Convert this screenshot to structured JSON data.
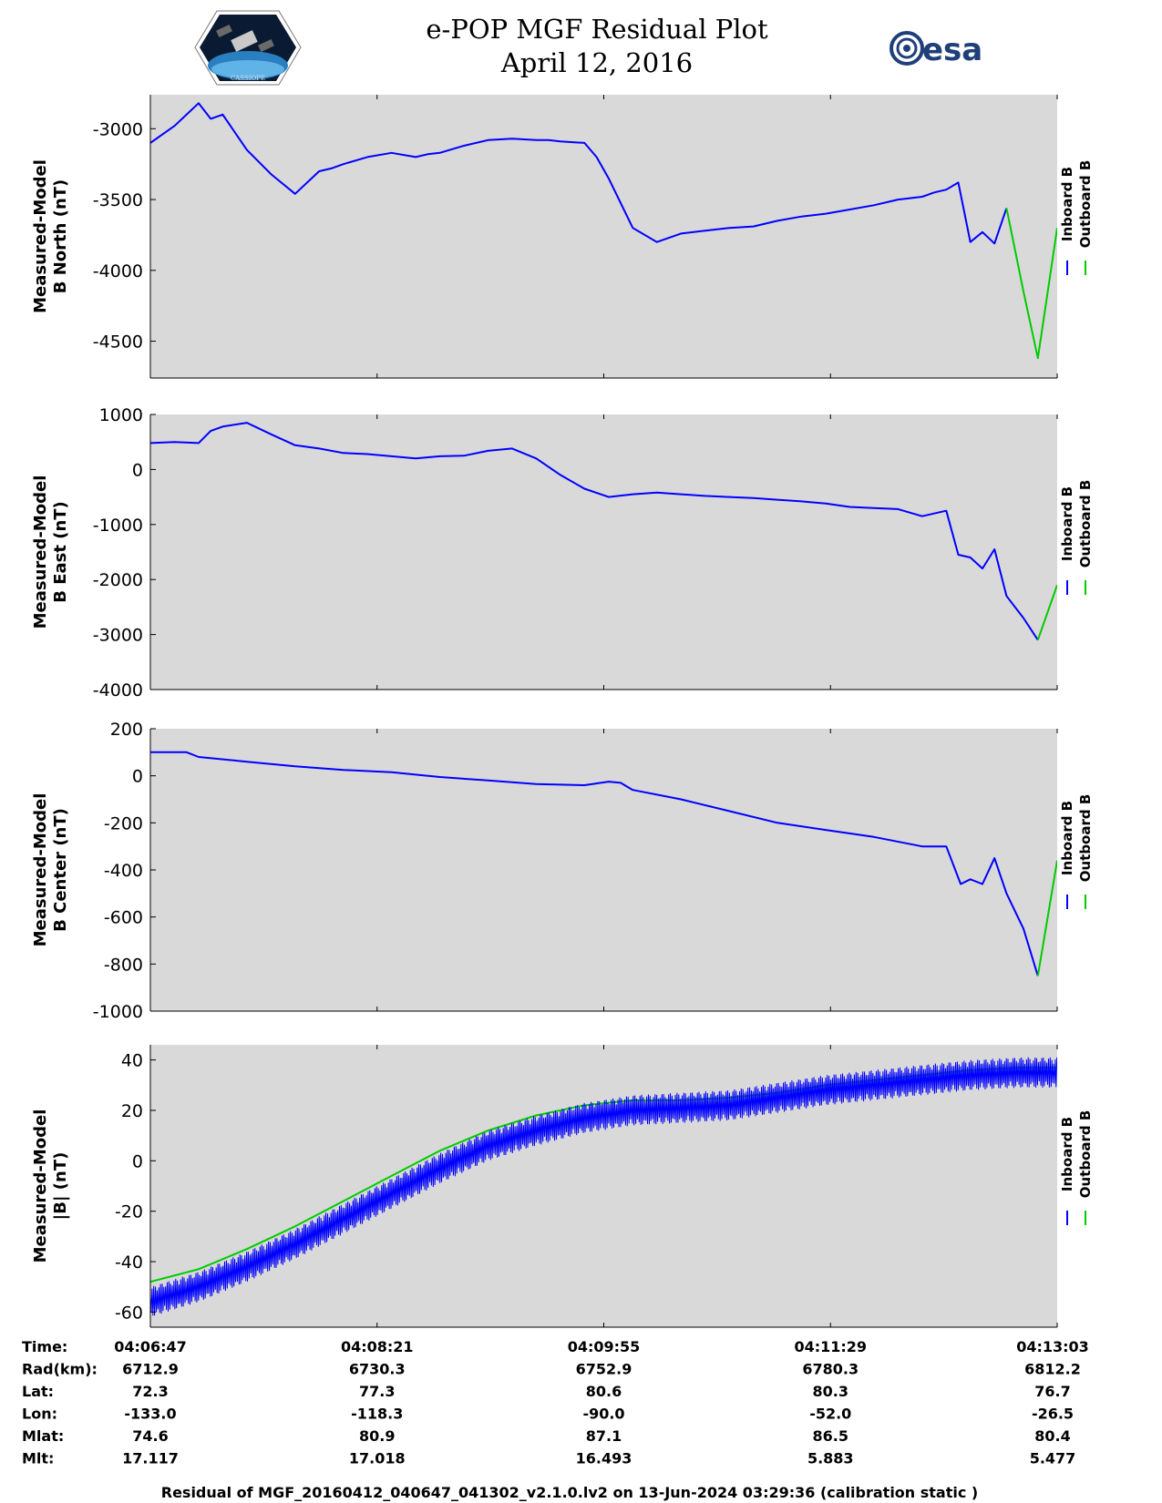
{
  "header": {
    "title": "e-POP MGF Residual Plot",
    "date": "April 12, 2016",
    "left_logo_text": "CASSIOPE",
    "right_logo_text": "esa"
  },
  "colors": {
    "inboard": "#0000ff",
    "outboard": "#00cc00",
    "plot_bg": "#d9d9d9",
    "axis": "#000000"
  },
  "legend": {
    "inboard_label": "Inboard B",
    "outboard_label": "Outboard B"
  },
  "chart_data": [
    {
      "type": "line",
      "ylabel_line1": "Measured-Model",
      "ylabel_line2": "B North (nT)",
      "ylim": [
        -4760,
        -2760
      ],
      "yticks": [
        -3000,
        -3500,
        -4000,
        -4500
      ],
      "ytick_labels": [
        "-3000",
        "-3500",
        "-4000",
        "-4500"
      ],
      "xlim": [
        0,
        376
      ],
      "series": [
        {
          "name": "Inboard B",
          "x": [
            0,
            10,
            20,
            25,
            30,
            40,
            50,
            60,
            70,
            75,
            80,
            90,
            100,
            110,
            115,
            120,
            130,
            140,
            150,
            160,
            165,
            170,
            180,
            185,
            190,
            200,
            210,
            220,
            230,
            240,
            250,
            260,
            270,
            280,
            290,
            300,
            310,
            320,
            325,
            330,
            335,
            340,
            345,
            350,
            355
          ],
          "y": [
            -3100,
            -2980,
            -2820,
            -2930,
            -2900,
            -3150,
            -3320,
            -3460,
            -3300,
            -3280,
            -3250,
            -3200,
            -3170,
            -3200,
            -3180,
            -3170,
            -3120,
            -3080,
            -3070,
            -3080,
            -3080,
            -3090,
            -3100,
            -3200,
            -3350,
            -3700,
            -3800,
            -3740,
            -3720,
            -3700,
            -3690,
            -3650,
            -3620,
            -3600,
            -3570,
            -3540,
            -3500,
            -3480,
            -3450,
            -3430,
            -3380,
            -3800,
            -3730,
            -3810,
            -3560
          ]
        },
        {
          "name": "Outboard B",
          "x": [
            355,
            362,
            368,
            376
          ],
          "y": [
            -3560,
            -4150,
            -4620,
            -3700
          ]
        }
      ]
    },
    {
      "type": "line",
      "ylabel_line1": "Measured-Model",
      "ylabel_line2": "B East (nT)",
      "ylim": [
        -4000,
        1000
      ],
      "yticks": [
        1000,
        0,
        -1000,
        -2000,
        -3000,
        -4000
      ],
      "ytick_labels": [
        "1000",
        "0",
        "-1000",
        "-2000",
        "-3000",
        "-4000"
      ],
      "xlim": [
        0,
        376
      ],
      "series": [
        {
          "name": "Inboard B",
          "x": [
            0,
            10,
            20,
            25,
            30,
            40,
            50,
            60,
            70,
            80,
            90,
            100,
            110,
            120,
            130,
            140,
            150,
            160,
            170,
            180,
            190,
            200,
            210,
            220,
            230,
            240,
            250,
            260,
            270,
            280,
            290,
            300,
            310,
            320,
            325,
            330,
            335,
            340,
            345,
            350,
            355,
            362,
            368
          ],
          "y": [
            480,
            500,
            480,
            700,
            780,
            850,
            640,
            440,
            380,
            300,
            280,
            240,
            200,
            240,
            250,
            340,
            380,
            200,
            -100,
            -350,
            -500,
            -450,
            -420,
            -450,
            -480,
            -500,
            -520,
            -550,
            -580,
            -620,
            -680,
            -700,
            -720,
            -850,
            -800,
            -750,
            -1550,
            -1600,
            -1800,
            -1450,
            -2300,
            -2700,
            -3100
          ]
        },
        {
          "name": "Outboard B",
          "x": [
            368,
            376
          ],
          "y": [
            -3100,
            -2100
          ]
        }
      ]
    },
    {
      "type": "line",
      "ylabel_line1": "Measured-Model",
      "ylabel_line2": "B Center (nT)",
      "ylim": [
        -1000,
        200
      ],
      "yticks": [
        200,
        0,
        -200,
        -400,
        -600,
        -800,
        -1000
      ],
      "ytick_labels": [
        "200",
        "0",
        "-200",
        "-400",
        "-600",
        "-800",
        "-1000"
      ],
      "xlim": [
        0,
        376
      ],
      "series": [
        {
          "name": "Inboard B",
          "x": [
            0,
            15,
            20,
            40,
            60,
            80,
            100,
            120,
            140,
            160,
            180,
            190,
            195,
            200,
            220,
            240,
            260,
            280,
            300,
            320,
            330,
            336,
            340,
            345,
            350,
            355,
            362,
            368
          ],
          "y": [
            100,
            100,
            80,
            60,
            40,
            25,
            15,
            -5,
            -20,
            -35,
            -40,
            -25,
            -30,
            -60,
            -100,
            -150,
            -200,
            -230,
            -260,
            -300,
            -300,
            -460,
            -440,
            -460,
            -350,
            -500,
            -650,
            -850
          ]
        },
        {
          "name": "Outboard B",
          "x": [
            368,
            376
          ],
          "y": [
            -850,
            -360
          ]
        }
      ]
    },
    {
      "type": "line",
      "ylabel_line1": "Measured-Model",
      "ylabel_line2": "|B| (nT)",
      "ylim": [
        -66,
        46
      ],
      "yticks": [
        40,
        20,
        0,
        -20,
        -40,
        -60
      ],
      "ytick_labels": [
        "40",
        "20",
        "0",
        "-20",
        "-40",
        "-60"
      ],
      "xlim": [
        0,
        376
      ],
      "series": [
        {
          "name": "Outboard B",
          "x": [
            0,
            20,
            40,
            60,
            80,
            100,
            120,
            140,
            160,
            180,
            200,
            220,
            240,
            260,
            280,
            300,
            320,
            340,
            360,
            376
          ],
          "y": [
            -48,
            -43,
            -35,
            -26,
            -16,
            -6,
            4,
            12,
            18,
            22,
            24,
            24,
            25,
            27,
            30,
            32,
            34,
            36,
            37,
            37
          ]
        },
        {
          "name": "Inboard B",
          "x": [
            0,
            20,
            40,
            60,
            80,
            100,
            120,
            140,
            160,
            180,
            200,
            220,
            240,
            260,
            280,
            300,
            320,
            340,
            360,
            376
          ],
          "y": [
            -56,
            -50,
            -42,
            -33,
            -23,
            -13,
            -3,
            6,
            12,
            17,
            20,
            21,
            22,
            25,
            28,
            30,
            32,
            34,
            35,
            35
          ],
          "noise_amplitude": 6
        }
      ]
    }
  ],
  "x_axis": {
    "ticks": [
      0,
      94,
      188,
      282,
      376
    ]
  },
  "ephemeris": {
    "row_labels": [
      "Time:",
      "Rad(km):",
      "Lat:",
      "Lon:",
      "Mlat:",
      "Mlt:"
    ],
    "columns": [
      [
        "04:06:47",
        "6712.9",
        "72.3",
        "-133.0",
        "74.6",
        "17.117"
      ],
      [
        "04:08:21",
        "6730.3",
        "77.3",
        "-118.3",
        "80.9",
        "17.018"
      ],
      [
        "04:09:55",
        "6752.9",
        "80.6",
        "-90.0",
        "87.1",
        "16.493"
      ],
      [
        "04:11:29",
        "6780.3",
        "80.3",
        "-52.0",
        "86.5",
        "5.883"
      ],
      [
        "04:13:03",
        "6812.2",
        "76.7",
        "-26.5",
        "80.4",
        "5.477"
      ]
    ]
  },
  "footer": {
    "text": "Residual of MGF_20160412_040647_041302_v2.1.0.lv2 on 13-Jun-2024 03:29:36 (calibration static )"
  }
}
